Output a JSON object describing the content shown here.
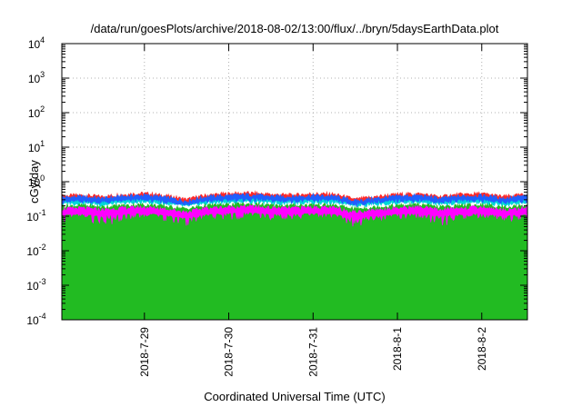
{
  "chart_data": {
    "type": "area",
    "title": "/data/run/goesPlots/archive/2018-08-02/13:00/flux/../bryn/5daysEarthData.plot",
    "xlabel": "Coordinated Universal Time (UTC)",
    "ylabel": "cGy/day",
    "y_scale": "log",
    "ylim": [
      0.0001,
      10000
    ],
    "y_ticks": [
      {
        "base": "10",
        "exp": "-4",
        "value": 0.0001
      },
      {
        "base": "10",
        "exp": "-3",
        "value": 0.001
      },
      {
        "base": "10",
        "exp": "-2",
        "value": 0.01
      },
      {
        "base": "10",
        "exp": "-1",
        "value": 0.1
      },
      {
        "base": "10",
        "exp": "0",
        "value": 1
      },
      {
        "base": "10",
        "exp": "1",
        "value": 10
      },
      {
        "base": "10",
        "exp": "2",
        "value": 100
      },
      {
        "base": "10",
        "exp": "3",
        "value": 1000
      },
      {
        "base": "10",
        "exp": "4",
        "value": 10000
      }
    ],
    "xlim": [
      "2018-07-28T00:30",
      "2018-08-02T13:00"
    ],
    "x_ticks": [
      "2018-7-29",
      "2018-7-30",
      "2018-7-31",
      "2018-8-1",
      "2018-8-2"
    ],
    "grid": true,
    "series": [
      {
        "color": "#ff2a2a",
        "x": [
          "2018-07-28T00:30",
          "2018-07-28T06:00",
          "2018-07-28T12:00",
          "2018-07-28T18:00",
          "2018-07-29T00:00",
          "2018-07-29T06:00",
          "2018-07-29T12:00",
          "2018-07-29T18:00",
          "2018-07-30T00:00",
          "2018-07-30T06:00",
          "2018-07-30T12:00",
          "2018-07-30T18:00",
          "2018-07-31T00:00",
          "2018-07-31T06:00",
          "2018-07-31T12:00",
          "2018-07-31T18:00",
          "2018-08-01T00:00",
          "2018-08-01T06:00",
          "2018-08-01T12:00",
          "2018-08-01T18:00",
          "2018-08-02T00:00",
          "2018-08-02T06:00",
          "2018-08-02T13:00"
        ],
        "values": [
          0.38,
          0.4,
          0.36,
          0.42,
          0.45,
          0.38,
          0.3,
          0.4,
          0.44,
          0.46,
          0.42,
          0.4,
          0.44,
          0.42,
          0.3,
          0.36,
          0.42,
          0.44,
          0.36,
          0.42,
          0.44,
          0.36,
          0.42
        ]
      },
      {
        "color": "#1f5fff",
        "x": [
          "2018-07-28T00:30",
          "2018-07-28T06:00",
          "2018-07-28T12:00",
          "2018-07-28T18:00",
          "2018-07-29T00:00",
          "2018-07-29T06:00",
          "2018-07-29T12:00",
          "2018-07-29T18:00",
          "2018-07-30T00:00",
          "2018-07-30T06:00",
          "2018-07-30T12:00",
          "2018-07-30T18:00",
          "2018-07-31T00:00",
          "2018-07-31T06:00",
          "2018-07-31T12:00",
          "2018-07-31T18:00",
          "2018-08-01T00:00",
          "2018-08-01T06:00",
          "2018-08-01T12:00",
          "2018-08-01T18:00",
          "2018-08-02T00:00",
          "2018-08-02T06:00",
          "2018-08-02T13:00"
        ],
        "values": [
          0.34,
          0.36,
          0.32,
          0.37,
          0.4,
          0.34,
          0.27,
          0.36,
          0.39,
          0.41,
          0.37,
          0.36,
          0.39,
          0.37,
          0.27,
          0.32,
          0.37,
          0.39,
          0.32,
          0.37,
          0.39,
          0.32,
          0.38
        ]
      },
      {
        "color": "#00d8d8",
        "x": [
          "2018-07-28T00:30",
          "2018-07-28T06:00",
          "2018-07-28T12:00",
          "2018-07-28T18:00",
          "2018-07-29T00:00",
          "2018-07-29T06:00",
          "2018-07-29T12:00",
          "2018-07-29T18:00",
          "2018-07-30T00:00",
          "2018-07-30T06:00",
          "2018-07-30T12:00",
          "2018-07-30T18:00",
          "2018-07-31T00:00",
          "2018-07-31T06:00",
          "2018-07-31T12:00",
          "2018-07-31T18:00",
          "2018-08-01T00:00",
          "2018-08-01T06:00",
          "2018-08-01T12:00",
          "2018-08-01T18:00",
          "2018-08-02T00:00",
          "2018-08-02T06:00",
          "2018-08-02T13:00"
        ],
        "values": [
          0.24,
          0.25,
          0.23,
          0.26,
          0.27,
          0.24,
          0.2,
          0.25,
          0.27,
          0.28,
          0.26,
          0.25,
          0.27,
          0.26,
          0.2,
          0.23,
          0.26,
          0.27,
          0.23,
          0.26,
          0.27,
          0.23,
          0.26
        ]
      },
      {
        "color": "#ffffff",
        "x": [
          "2018-07-28T00:30",
          "2018-07-28T06:00",
          "2018-07-28T12:00",
          "2018-07-28T18:00",
          "2018-07-29T00:00",
          "2018-07-29T06:00",
          "2018-07-29T12:00",
          "2018-07-29T18:00",
          "2018-07-30T00:00",
          "2018-07-30T06:00",
          "2018-07-30T12:00",
          "2018-07-30T18:00",
          "2018-07-31T00:00",
          "2018-07-31T06:00",
          "2018-07-31T12:00",
          "2018-07-31T18:00",
          "2018-08-01T00:00",
          "2018-08-01T06:00",
          "2018-08-01T12:00",
          "2018-08-01T18:00",
          "2018-08-02T00:00",
          "2018-08-02T06:00",
          "2018-08-02T13:00"
        ],
        "values": [
          0.21,
          0.22,
          0.2,
          0.22,
          0.23,
          0.21,
          0.18,
          0.22,
          0.23,
          0.24,
          0.22,
          0.22,
          0.23,
          0.22,
          0.18,
          0.2,
          0.22,
          0.23,
          0.2,
          0.22,
          0.23,
          0.2,
          0.22
        ]
      },
      {
        "color": "#22bb22",
        "x": [
          "2018-07-28T00:30",
          "2018-07-28T06:00",
          "2018-07-28T12:00",
          "2018-07-28T18:00",
          "2018-07-29T00:00",
          "2018-07-29T06:00",
          "2018-07-29T12:00",
          "2018-07-29T18:00",
          "2018-07-30T00:00",
          "2018-07-30T06:00",
          "2018-07-30T12:00",
          "2018-07-30T18:00",
          "2018-07-31T00:00",
          "2018-07-31T06:00",
          "2018-07-31T12:00",
          "2018-07-31T18:00",
          "2018-08-01T00:00",
          "2018-08-01T06:00",
          "2018-08-01T12:00",
          "2018-08-01T18:00",
          "2018-08-02T00:00",
          "2018-08-02T06:00",
          "2018-08-02T13:00"
        ],
        "values": [
          0.19,
          0.2,
          0.18,
          0.2,
          0.21,
          0.19,
          0.16,
          0.2,
          0.21,
          0.22,
          0.2,
          0.2,
          0.21,
          0.2,
          0.16,
          0.18,
          0.2,
          0.21,
          0.18,
          0.2,
          0.21,
          0.18,
          0.2
        ]
      },
      {
        "color": "#ff00ff",
        "x": [
          "2018-07-28T00:30",
          "2018-07-28T06:00",
          "2018-07-28T12:00",
          "2018-07-28T18:00",
          "2018-07-29T00:00",
          "2018-07-29T06:00",
          "2018-07-29T12:00",
          "2018-07-29T18:00",
          "2018-07-30T00:00",
          "2018-07-30T06:00",
          "2018-07-30T12:00",
          "2018-07-30T18:00",
          "2018-07-31T00:00",
          "2018-07-31T06:00",
          "2018-07-31T12:00",
          "2018-07-31T18:00",
          "2018-08-01T00:00",
          "2018-08-01T06:00",
          "2018-08-01T12:00",
          "2018-08-01T18:00",
          "2018-08-02T00:00",
          "2018-08-02T06:00",
          "2018-08-02T13:00"
        ],
        "values": [
          0.16,
          0.17,
          0.15,
          0.17,
          0.18,
          0.16,
          0.13,
          0.17,
          0.18,
          0.19,
          0.17,
          0.17,
          0.18,
          0.17,
          0.13,
          0.15,
          0.17,
          0.18,
          0.15,
          0.17,
          0.18,
          0.15,
          0.17
        ],
        "min_values": [
          0.06,
          0.1,
          0.03,
          0.08,
          0.09,
          0.07,
          0.05,
          0.08,
          0.07,
          0.09,
          0.08,
          0.08,
          0.09,
          0.08,
          0.045,
          0.07,
          0.08,
          0.09,
          0.035,
          0.08,
          0.09,
          0.06,
          0.08
        ]
      }
    ]
  }
}
